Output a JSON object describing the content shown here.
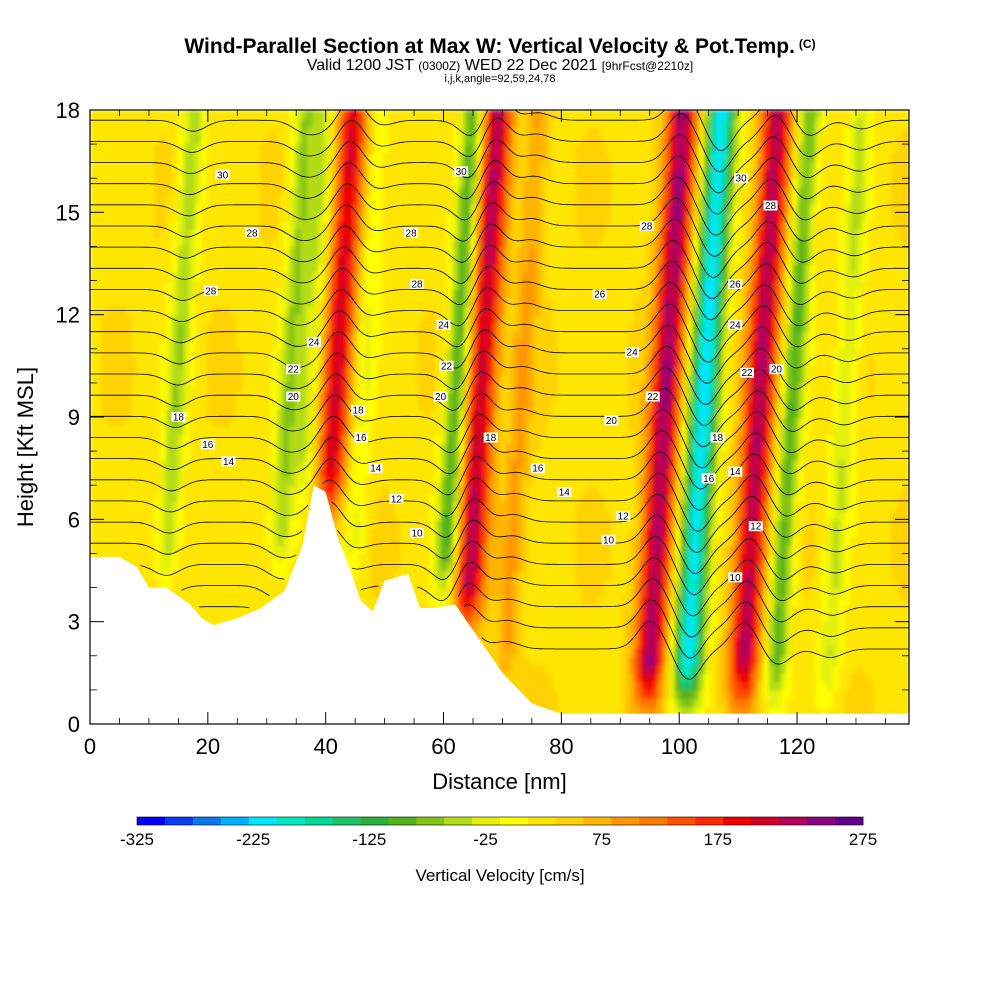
{
  "title": {
    "main": "Wind-Parallel Section at Max W: Vertical Velocity & Pot.Temp.",
    "mark": "(C)",
    "valid_prefix": "Valid 1200 JST",
    "valid_z": "(0300Z)",
    "valid_date": "WED 22 Dec 2021",
    "forecast": "[9hrFcst@2210z]",
    "indices": "i,j,k,angle=92,59,24,78"
  },
  "chart_data": {
    "type": "heatmap",
    "xlabel": "Distance [nm]",
    "ylabel": "Height [Kft MSL]",
    "xlim": [
      0,
      139
    ],
    "ylim": [
      0,
      18
    ],
    "x_ticks": [
      "0",
      "20",
      "40",
      "60",
      "80",
      "100",
      "120"
    ],
    "y_ticks": [
      "0",
      "3",
      "6",
      "9",
      "12",
      "15",
      "18"
    ],
    "colorbar": {
      "title": "Vertical Velocity [cm/s]",
      "range": [
        -325,
        275
      ],
      "step": 25,
      "labels": [
        "-325",
        "-225",
        "-125",
        "-25",
        "75",
        "175",
        "275"
      ],
      "colors": [
        "#0000ff",
        "#0a3cf5",
        "#0878f0",
        "#00b0ff",
        "#00e6ff",
        "#00e8c4",
        "#00d896",
        "#1dc468",
        "#2ab23a",
        "#52b21c",
        "#80c414",
        "#b4dc14",
        "#e4f00a",
        "#ffff00",
        "#ffe600",
        "#ffd200",
        "#ffb400",
        "#ff9600",
        "#ff7800",
        "#ff5000",
        "#ff2800",
        "#ee0000",
        "#d20028",
        "#b4005a",
        "#8c0082",
        "#64008c"
      ]
    },
    "vertical_velocity_features": [
      {
        "x": 14.5,
        "w": -90,
        "kind": "downdraft"
      },
      {
        "x": 33.5,
        "w": -95,
        "kind": "downdraft"
      },
      {
        "x": 37.0,
        "w": -70,
        "kind": "downdraft"
      },
      {
        "x": 41.5,
        "w": 185,
        "kind": "updraft"
      },
      {
        "x": 46.0,
        "w": -50,
        "kind": "downdraft"
      },
      {
        "x": 62.0,
        "w": -150,
        "kind": "downdraft"
      },
      {
        "x": 66.0,
        "w": 210,
        "kind": "updraft"
      },
      {
        "x": 73.0,
        "w": 60,
        "kind": "updraft"
      },
      {
        "x": 97.5,
        "w": 230,
        "kind": "updraft"
      },
      {
        "x": 104.0,
        "w": -260,
        "kind": "downdraft"
      },
      {
        "x": 113.5,
        "w": 215,
        "kind": "updraft"
      },
      {
        "x": 119.0,
        "w": -130,
        "kind": "downdraft"
      },
      {
        "x": 128.0,
        "w": -70,
        "kind": "downdraft"
      }
    ],
    "terrain": [
      {
        "x": 0,
        "z": 4.9
      },
      {
        "x": 5,
        "z": 4.9
      },
      {
        "x": 8,
        "z": 4.6
      },
      {
        "x": 10,
        "z": 4.0
      },
      {
        "x": 13,
        "z": 4.0
      },
      {
        "x": 17,
        "z": 3.5
      },
      {
        "x": 19,
        "z": 3.1
      },
      {
        "x": 21,
        "z": 2.9
      },
      {
        "x": 25,
        "z": 3.1
      },
      {
        "x": 29,
        "z": 3.4
      },
      {
        "x": 33,
        "z": 3.9
      },
      {
        "x": 36,
        "z": 5.2
      },
      {
        "x": 38,
        "z": 7.0
      },
      {
        "x": 40,
        "z": 6.8
      },
      {
        "x": 42,
        "z": 5.5
      },
      {
        "x": 44,
        "z": 4.6
      },
      {
        "x": 46,
        "z": 3.6
      },
      {
        "x": 48,
        "z": 3.3
      },
      {
        "x": 50,
        "z": 4.2
      },
      {
        "x": 54,
        "z": 4.4
      },
      {
        "x": 56,
        "z": 3.4
      },
      {
        "x": 58,
        "z": 3.4
      },
      {
        "x": 62,
        "z": 3.5
      },
      {
        "x": 66,
        "z": 2.5
      },
      {
        "x": 70,
        "z": 1.5
      },
      {
        "x": 75,
        "z": 0.6
      },
      {
        "x": 80,
        "z": 0.3
      },
      {
        "x": 139,
        "z": 0.3
      }
    ],
    "theta_contours": [
      {
        "theta": 8
      },
      {
        "theta": 9
      },
      {
        "theta": 10
      },
      {
        "theta": 11
      },
      {
        "theta": 12
      },
      {
        "theta": 13
      },
      {
        "theta": 14
      },
      {
        "theta": 15
      },
      {
        "theta": 16
      },
      {
        "theta": 17
      },
      {
        "theta": 18
      },
      {
        "theta": 19
      },
      {
        "theta": 20
      },
      {
        "theta": 21
      },
      {
        "theta": 22
      },
      {
        "theta": 23
      },
      {
        "theta": 24
      },
      {
        "theta": 25
      },
      {
        "theta": 26
      },
      {
        "theta": 27
      },
      {
        "theta": 28
      },
      {
        "theta": 29
      },
      {
        "theta": 30
      },
      {
        "theta": 31
      },
      {
        "theta": 32
      },
      {
        "theta": 33
      }
    ],
    "contour_labels": [
      {
        "text": "30",
        "x": 22.5,
        "z": 16.1
      },
      {
        "text": "28",
        "x": 27.5,
        "z": 14.4
      },
      {
        "text": "28",
        "x": 20.5,
        "z": 12.7
      },
      {
        "text": "24",
        "x": 38.0,
        "z": 11.2
      },
      {
        "text": "22",
        "x": 34.5,
        "z": 10.4
      },
      {
        "text": "20",
        "x": 34.5,
        "z": 9.6
      },
      {
        "text": "18",
        "x": 15.0,
        "z": 9.0
      },
      {
        "text": "16",
        "x": 20.0,
        "z": 8.2
      },
      {
        "text": "14",
        "x": 23.5,
        "z": 7.7
      },
      {
        "text": "30",
        "x": 63.0,
        "z": 16.2
      },
      {
        "text": "28",
        "x": 54.5,
        "z": 14.4
      },
      {
        "text": "28",
        "x": 55.5,
        "z": 12.9
      },
      {
        "text": "24",
        "x": 60.0,
        "z": 11.7
      },
      {
        "text": "22",
        "x": 60.5,
        "z": 10.5
      },
      {
        "text": "20",
        "x": 59.5,
        "z": 9.6
      },
      {
        "text": "18",
        "x": 45.5,
        "z": 9.2
      },
      {
        "text": "16",
        "x": 46.0,
        "z": 8.4
      },
      {
        "text": "14",
        "x": 48.5,
        "z": 7.5
      },
      {
        "text": "12",
        "x": 52.0,
        "z": 6.6
      },
      {
        "text": "10",
        "x": 55.5,
        "z": 5.6
      },
      {
        "text": "18",
        "x": 68.0,
        "z": 8.4
      },
      {
        "text": "16",
        "x": 76.0,
        "z": 7.5
      },
      {
        "text": "14",
        "x": 80.5,
        "z": 6.8
      },
      {
        "text": "12",
        "x": 90.5,
        "z": 6.1
      },
      {
        "text": "10",
        "x": 88.0,
        "z": 5.4
      },
      {
        "text": "20",
        "x": 88.5,
        "z": 8.9
      },
      {
        "text": "22",
        "x": 95.5,
        "z": 9.6
      },
      {
        "text": "24",
        "x": 92.0,
        "z": 10.9
      },
      {
        "text": "26",
        "x": 86.5,
        "z": 12.6
      },
      {
        "text": "28",
        "x": 94.5,
        "z": 14.6
      },
      {
        "text": "30",
        "x": 110.5,
        "z": 16.0
      },
      {
        "text": "28",
        "x": 115.5,
        "z": 15.2
      },
      {
        "text": "26",
        "x": 109.5,
        "z": 12.9
      },
      {
        "text": "24",
        "x": 109.5,
        "z": 11.7
      },
      {
        "text": "22",
        "x": 111.5,
        "z": 10.3
      },
      {
        "text": "20",
        "x": 116.5,
        "z": 10.4
      },
      {
        "text": "18",
        "x": 106.5,
        "z": 8.4
      },
      {
        "text": "16",
        "x": 105.0,
        "z": 7.2
      },
      {
        "text": "14",
        "x": 109.5,
        "z": 7.4
      },
      {
        "text": "12",
        "x": 113.0,
        "z": 5.8
      },
      {
        "text": "10",
        "x": 109.5,
        "z": 4.3
      }
    ]
  }
}
